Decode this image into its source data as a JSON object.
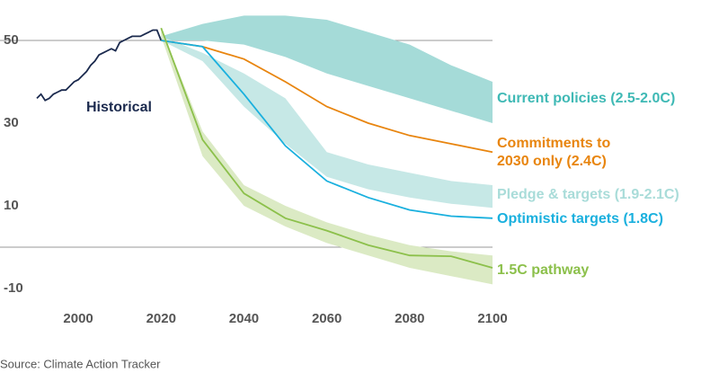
{
  "chart_data": {
    "type": "line",
    "source": "Source: Climate Action Tracker",
    "xlim": [
      1990,
      2100
    ],
    "xticks": [
      2000,
      2020,
      2040,
      2060,
      2080,
      2100
    ],
    "ylim": [
      -14,
      58
    ],
    "yticks": [
      -10,
      10,
      30,
      50
    ],
    "hlines": [
      0,
      50
    ],
    "series": [
      {
        "name": "Historical",
        "color": "#1b2a4e",
        "x": [
          1990,
          1991,
          1992,
          1993,
          1994,
          1995,
          1996,
          1997,
          1998,
          1999,
          2000,
          2001,
          2002,
          2003,
          2004,
          2005,
          2006,
          2007,
          2008,
          2009,
          2010,
          2011,
          2012,
          2013,
          2014,
          2015,
          2016,
          2017,
          2018,
          2019,
          2020
        ],
        "values": [
          36,
          37,
          35.5,
          36,
          37,
          37.5,
          38,
          38,
          39,
          40,
          40.5,
          41.5,
          42.5,
          44,
          45,
          46.5,
          47,
          47.5,
          48,
          47.5,
          49.5,
          50,
          50.5,
          51,
          51,
          51,
          51.5,
          52,
          52.5,
          52.5,
          50
        ]
      },
      {
        "name": "Current policies (2.5-2.0C)",
        "color": "#3fb9b5",
        "band_color": "#a5dbd8",
        "x": [
          2020,
          2030,
          2040,
          2050,
          2060,
          2070,
          2080,
          2090,
          2100
        ],
        "upper": [
          51,
          54,
          56,
          56,
          55,
          52,
          49,
          44,
          40
        ],
        "lower": [
          50,
          50,
          49,
          46,
          42,
          39,
          36,
          33,
          30
        ]
      },
      {
        "name": "Commitments to\n2030 only (2.4C)",
        "color": "#e8850f",
        "x": [
          2020,
          2030,
          2040,
          2050,
          2060,
          2070,
          2080,
          2090,
          2100
        ],
        "values": [
          50,
          48.5,
          45.5,
          40,
          34,
          30,
          27,
          25,
          23
        ]
      },
      {
        "name": "Pledge & targets (1.9-2.1C)",
        "color": "#a9dcd9",
        "band_color": "#c6e8e6",
        "x": [
          2020,
          2030,
          2040,
          2050,
          2060,
          2070,
          2080,
          2090,
          2100
        ],
        "upper": [
          51,
          47,
          42,
          36,
          23,
          20,
          18,
          16,
          15
        ],
        "lower": [
          50,
          45,
          34,
          25,
          17,
          14,
          12,
          10.5,
          9.5
        ]
      },
      {
        "name": "Optimistic targets (1.8C)",
        "color": "#1ab0de",
        "x": [
          2020,
          2030,
          2040,
          2050,
          2060,
          2070,
          2080,
          2090,
          2100
        ],
        "values": [
          50,
          48.5,
          37,
          24.5,
          16,
          12,
          9,
          7.5,
          7
        ]
      },
      {
        "name": "1.5C pathway",
        "color": "#8cc04b",
        "band_color": "#dbeac4",
        "x": [
          2020,
          2030,
          2040,
          2050,
          2060,
          2070,
          2080,
          2090,
          2100
        ],
        "values": [
          53,
          26,
          13,
          7,
          4,
          0.5,
          -2,
          -2.2,
          -5
        ],
        "upper": [
          53,
          28,
          15,
          10,
          6,
          3,
          0.5,
          -1,
          -2
        ],
        "lower": [
          51,
          22,
          10,
          5,
          1,
          -2,
          -5,
          -7,
          -9
        ]
      }
    ]
  }
}
